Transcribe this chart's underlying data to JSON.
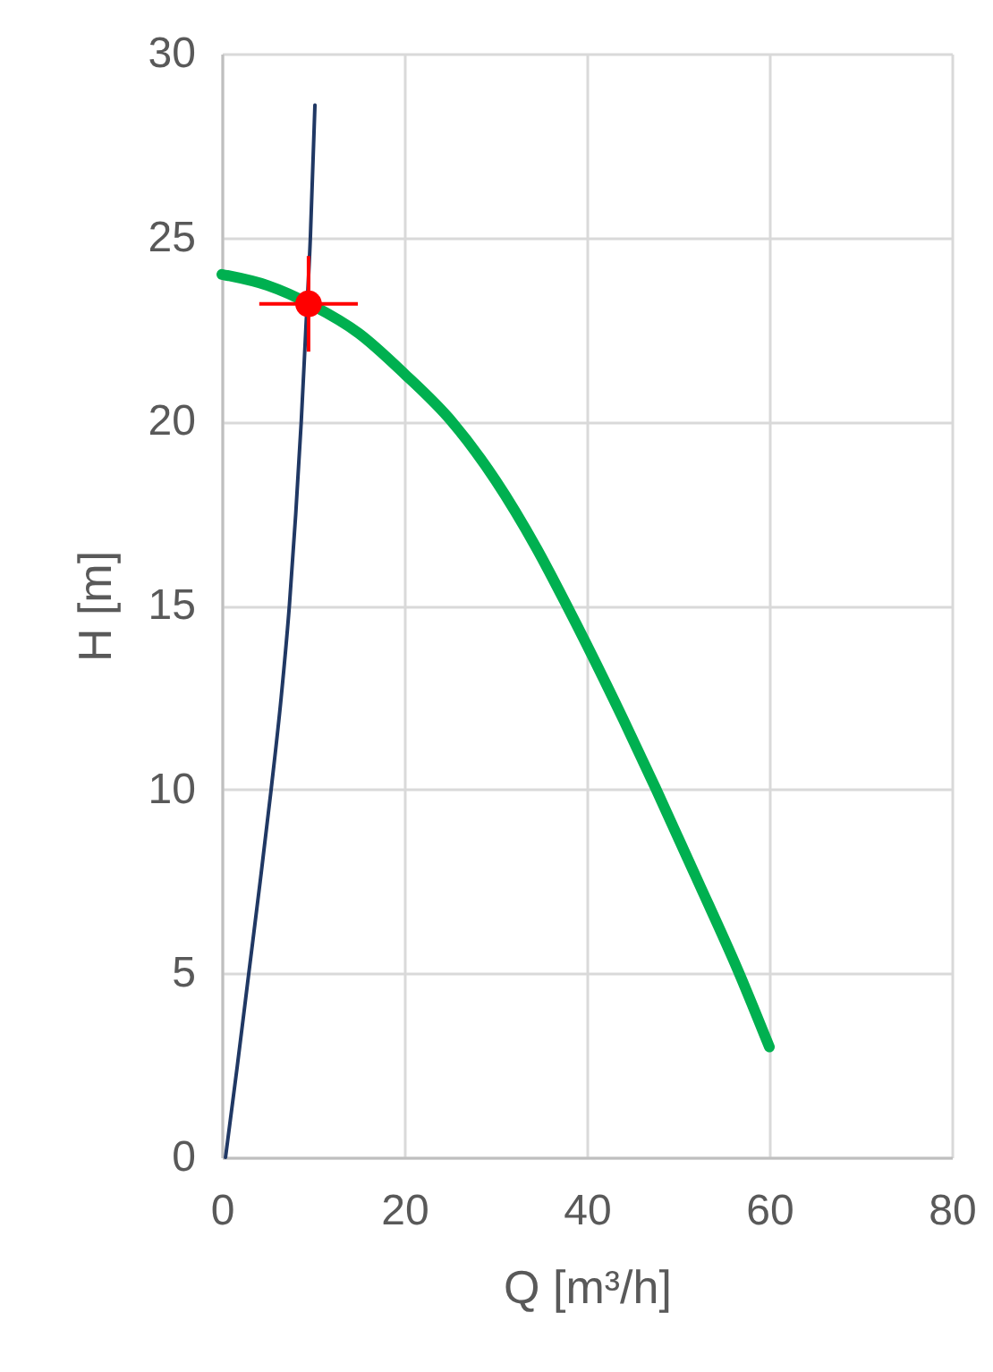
{
  "chart_data": {
    "type": "line",
    "xlabel": "Q [m³/h]",
    "ylabel": "H [m]",
    "xlim": [
      0,
      80
    ],
    "xticks": [
      0,
      20,
      40,
      60,
      80
    ],
    "ylim": [
      0,
      30
    ],
    "yticks": [
      0,
      5,
      10,
      15,
      20,
      25,
      30
    ],
    "grid": true,
    "series": [
      {
        "color": "#00b050",
        "x": [
          0,
          5,
          10,
          15,
          20,
          25.2,
          30,
          34.5,
          37.8,
          44,
          47.6,
          52,
          56.7,
          60
        ],
        "values": [
          24,
          23.7,
          23.15,
          22.4,
          21.3,
          20,
          18.4,
          16.55,
          15,
          11.9,
          10,
          7.6,
          5,
          3
        ]
      },
      {
        "color": "#203864",
        "x": [
          0.4,
          1.7,
          2.95,
          4.2,
          5.4,
          6.5,
          7.4,
          8.1,
          8.7,
          9.2,
          9.7,
          10.2
        ],
        "values": [
          0,
          2.5,
          5,
          7.5,
          10,
          12.5,
          15,
          17.5,
          20,
          22.5,
          25,
          28.6
        ]
      },
      {
        "type": "scatter",
        "color": "#ff0000",
        "marker": "circle",
        "x": [
          9.5
        ],
        "values": [
          23.2
        ],
        "errors": [
          1.3
        ],
        "xerrors": [
          5.4
        ]
      }
    ]
  }
}
